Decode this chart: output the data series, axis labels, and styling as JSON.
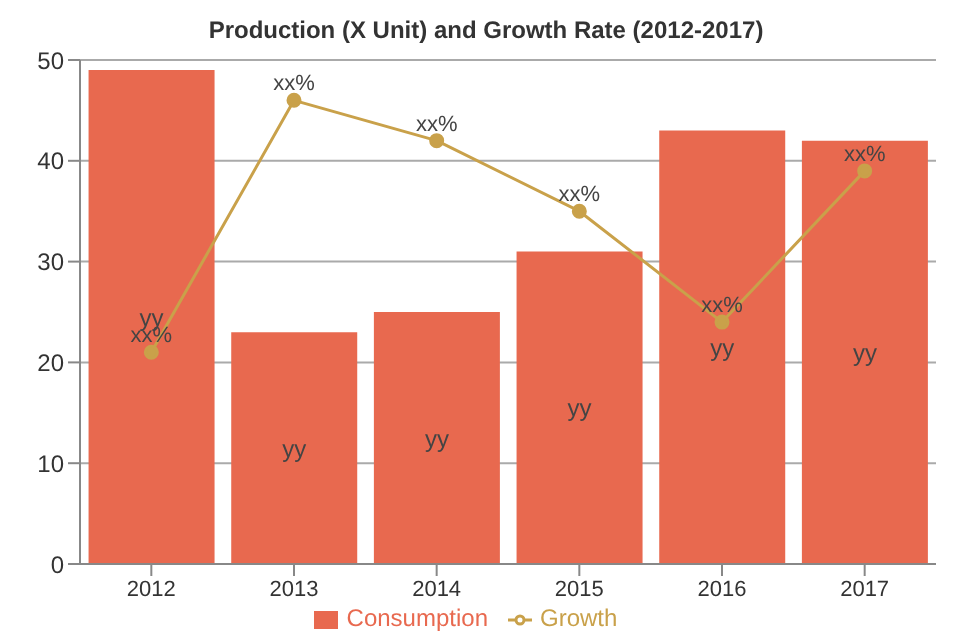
{
  "chart_data": {
    "type": "bar",
    "title": "Production (X Unit) and Growth Rate (2012-2017)",
    "categories": [
      "2012",
      "2013",
      "2014",
      "2015",
      "2016",
      "2017"
    ],
    "series": [
      {
        "name": "Consumption",
        "color": "#e8694f",
        "values": [
          49,
          23,
          25,
          31,
          43,
          42
        ],
        "value_labels": [
          "yy",
          "yy",
          "yy",
          "yy",
          "yy",
          "yy"
        ]
      },
      {
        "name": "Growth",
        "type": "line",
        "color": "#c9a14a",
        "values": [
          21,
          46,
          42,
          35,
          24,
          39
        ],
        "value_labels": [
          "xx%",
          "xx%",
          "xx%",
          "xx%",
          "xx%",
          "xx%"
        ]
      }
    ],
    "ylim": [
      0,
      50
    ],
    "yticks": [
      0,
      10,
      20,
      30,
      40,
      50
    ],
    "grid": "y",
    "legend": "bottom",
    "marker": "circle"
  }
}
